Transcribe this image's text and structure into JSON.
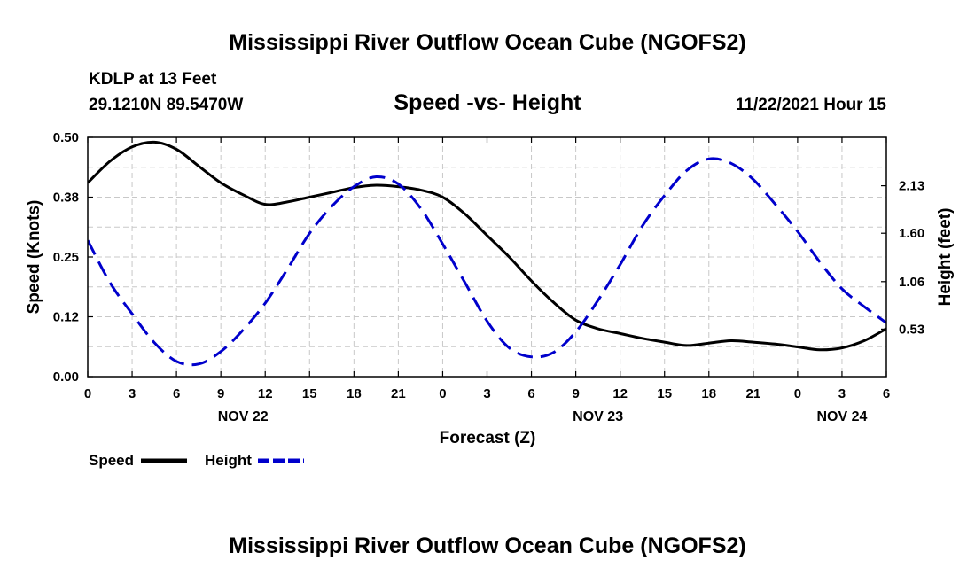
{
  "chart_data": {
    "type": "line",
    "title": "Mississippi River Outflow Ocean Cube (NGOFS2)",
    "footer_title": "Mississippi River Outflow Ocean Cube (NGOFS2)",
    "subtitle": "Speed -vs- Height",
    "station": "KDLP at 13 Feet",
    "location": "29.1210N  89.5470W",
    "datetime": "11/22/2021 Hour 15",
    "xlabel": "Forecast (Z)",
    "ylabel_left": "Speed (Knots)",
    "ylabel_right": "Height (feet)",
    "x_range": [
      0,
      54
    ],
    "x_ticks": [
      0,
      3,
      6,
      9,
      12,
      15,
      18,
      21,
      24,
      27,
      30,
      33,
      36,
      39,
      42,
      45,
      48,
      51,
      54
    ],
    "x_tick_labels": [
      "0",
      "3",
      "6",
      "9",
      "12",
      "15",
      "18",
      "21",
      "0",
      "3",
      "6",
      "9",
      "12",
      "15",
      "18",
      "21",
      "0",
      "3",
      "6"
    ],
    "date_labels": [
      {
        "label": "NOV 22",
        "x": 10.5
      },
      {
        "label": "NOV 23",
        "x": 34.5
      },
      {
        "label": "NOV 24",
        "x": 51
      }
    ],
    "y_left": {
      "range": [
        0,
        0.5
      ],
      "ticks": [
        0,
        0.125,
        0.25,
        0.375,
        0.5
      ],
      "tick_labels": [
        "0.00",
        "0.12",
        "0.25",
        "0.38",
        "0.50"
      ]
    },
    "y_right": {
      "range": [
        0,
        2.67
      ],
      "ticks": [
        0.53,
        1.06,
        1.6,
        2.13
      ],
      "tick_labels": [
        "0.53",
        "1.06",
        "1.60",
        "2.13"
      ]
    },
    "grid": true,
    "legend": [
      {
        "name": "Speed",
        "color": "#000000",
        "dash": "solid"
      },
      {
        "name": "Height",
        "color": "#0000cc",
        "dash": "dashed"
      }
    ],
    "series": [
      {
        "name": "Speed",
        "axis": "left",
        "color": "#000000",
        "x": [
          0,
          1.5,
          3,
          4.5,
          6,
          7.5,
          9,
          10.5,
          12,
          13.5,
          15,
          16.5,
          18,
          19.5,
          21,
          22.5,
          24,
          25.5,
          27,
          28.5,
          30,
          31.5,
          33,
          34.5,
          36,
          37.5,
          39,
          40.5,
          42,
          43.5,
          45,
          46.5,
          48,
          49.5,
          51,
          52.5,
          54
        ],
        "values": [
          0.405,
          0.45,
          0.48,
          0.49,
          0.475,
          0.44,
          0.405,
          0.38,
          0.36,
          0.365,
          0.375,
          0.385,
          0.395,
          0.4,
          0.397,
          0.39,
          0.375,
          0.34,
          0.295,
          0.25,
          0.2,
          0.155,
          0.118,
          0.1,
          0.09,
          0.08,
          0.072,
          0.065,
          0.07,
          0.075,
          0.072,
          0.068,
          0.062,
          0.056,
          0.06,
          0.075,
          0.1
        ]
      },
      {
        "name": "Height",
        "axis": "right",
        "color": "#0000cc",
        "x": [
          0,
          1.5,
          3,
          4.5,
          6,
          7.5,
          9,
          10.5,
          12,
          13.5,
          15,
          16.5,
          18,
          19.5,
          21,
          22.5,
          24,
          25.5,
          27,
          28.5,
          30,
          31.5,
          33,
          34.5,
          36,
          37.5,
          39,
          40.5,
          42,
          43.5,
          45,
          46.5,
          48,
          49.5,
          51,
          52.5,
          54
        ],
        "values": [
          1.52,
          1.05,
          0.7,
          0.38,
          0.17,
          0.14,
          0.28,
          0.52,
          0.82,
          1.2,
          1.6,
          1.9,
          2.12,
          2.23,
          2.15,
          1.88,
          1.48,
          1.05,
          0.62,
          0.32,
          0.22,
          0.27,
          0.5,
          0.85,
          1.25,
          1.68,
          2.02,
          2.3,
          2.43,
          2.38,
          2.2,
          1.92,
          1.62,
          1.28,
          0.98,
          0.78,
          0.6
        ]
      }
    ]
  }
}
